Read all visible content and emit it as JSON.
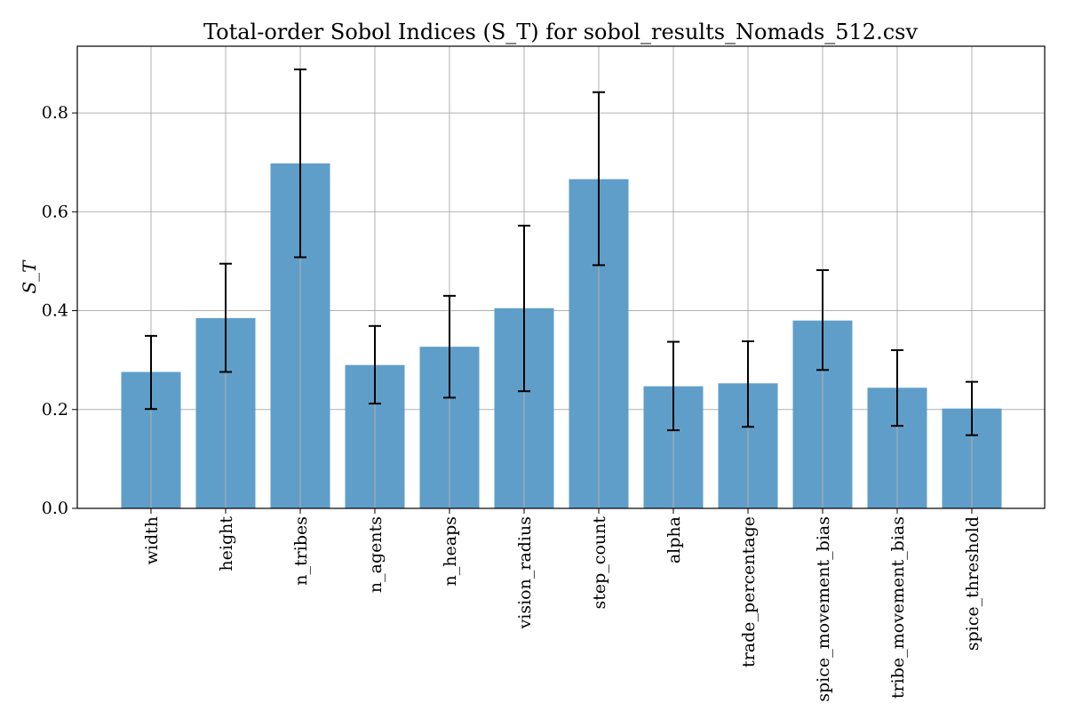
{
  "chart_data": {
    "type": "bar",
    "title": "Total-order Sobol Indices (S_T) for sobol_results_Nomads_512.csv",
    "xlabel": "",
    "ylabel": "S_T",
    "ylim": [
      0,
      0.935
    ],
    "yticks": [
      "0.0",
      "0.2",
      "0.4",
      "0.6",
      "0.8"
    ],
    "ytick_values": [
      0.0,
      0.2,
      0.4,
      0.6,
      0.8
    ],
    "grid": true,
    "categories": [
      "width",
      "height",
      "n_tribes",
      "n_agents",
      "n_heaps",
      "vision_radius",
      "step_count",
      "alpha",
      "trade_percentage",
      "spice_movement_bias",
      "tribe_movement_bias",
      "spice_threshold"
    ],
    "values": [
      0.276,
      0.385,
      0.698,
      0.29,
      0.327,
      0.405,
      0.666,
      0.247,
      0.253,
      0.38,
      0.244,
      0.202
    ],
    "error_low": [
      0.201,
      0.276,
      0.508,
      0.212,
      0.224,
      0.237,
      0.492,
      0.158,
      0.165,
      0.28,
      0.167,
      0.148
    ],
    "error_high": [
      0.349,
      0.495,
      0.888,
      0.369,
      0.43,
      0.572,
      0.842,
      0.337,
      0.338,
      0.482,
      0.32,
      0.256
    ],
    "bar_color": "#5f9ec9",
    "grid_color": "#b0b0b0",
    "error_color": "#000000"
  }
}
